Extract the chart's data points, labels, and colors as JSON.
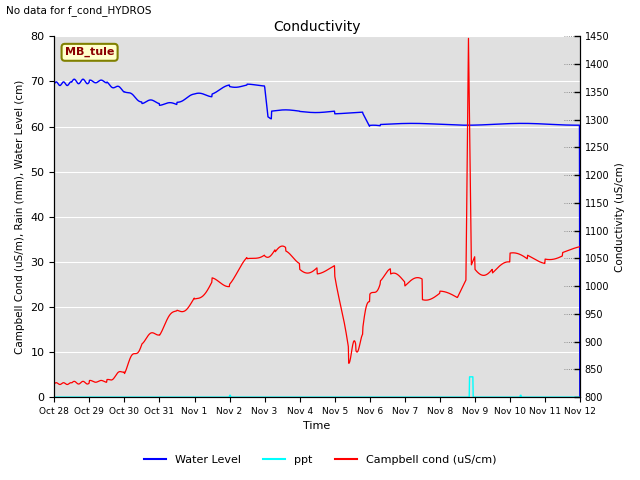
{
  "title": "Conductivity",
  "subtitle": "No data for f_cond_HYDROS",
  "xlabel": "Time",
  "ylabel_left": "Campbell Cond (uS/m), Rain (mm), Water Level (cm)",
  "ylabel_right": "Conductivity (uS/cm)",
  "site_label": "MB_tule",
  "ylim_left": [
    0,
    80
  ],
  "ylim_right": [
    800,
    1450
  ],
  "background_color": "#e0e0e0",
  "legend_entries": [
    "Water Level",
    "ppt",
    "Campbell cond (uS/cm)"
  ],
  "legend_colors": [
    "blue",
    "cyan",
    "red"
  ],
  "right_yticks": [
    800,
    850,
    900,
    950,
    1000,
    1050,
    1100,
    1150,
    1200,
    1250,
    1300,
    1350,
    1400,
    1450
  ],
  "left_yticks": [
    0,
    10,
    20,
    30,
    40,
    50,
    60,
    70,
    80
  ],
  "xtick_positions": [
    0,
    1,
    2,
    3,
    4,
    5,
    6,
    7,
    8,
    9,
    10,
    11,
    12,
    13,
    14,
    15
  ],
  "xtick_labels": [
    "Oct 28",
    "Oct 29",
    "Oct 30",
    "Oct 31",
    "Nov 1",
    "Nov 2",
    "Nov 3",
    "Nov 4",
    "Nov 5",
    "Nov 6",
    "Nov 7",
    "Nov 8",
    "Nov 9",
    "Nov 10",
    "Nov 11",
    "Nov 12"
  ]
}
